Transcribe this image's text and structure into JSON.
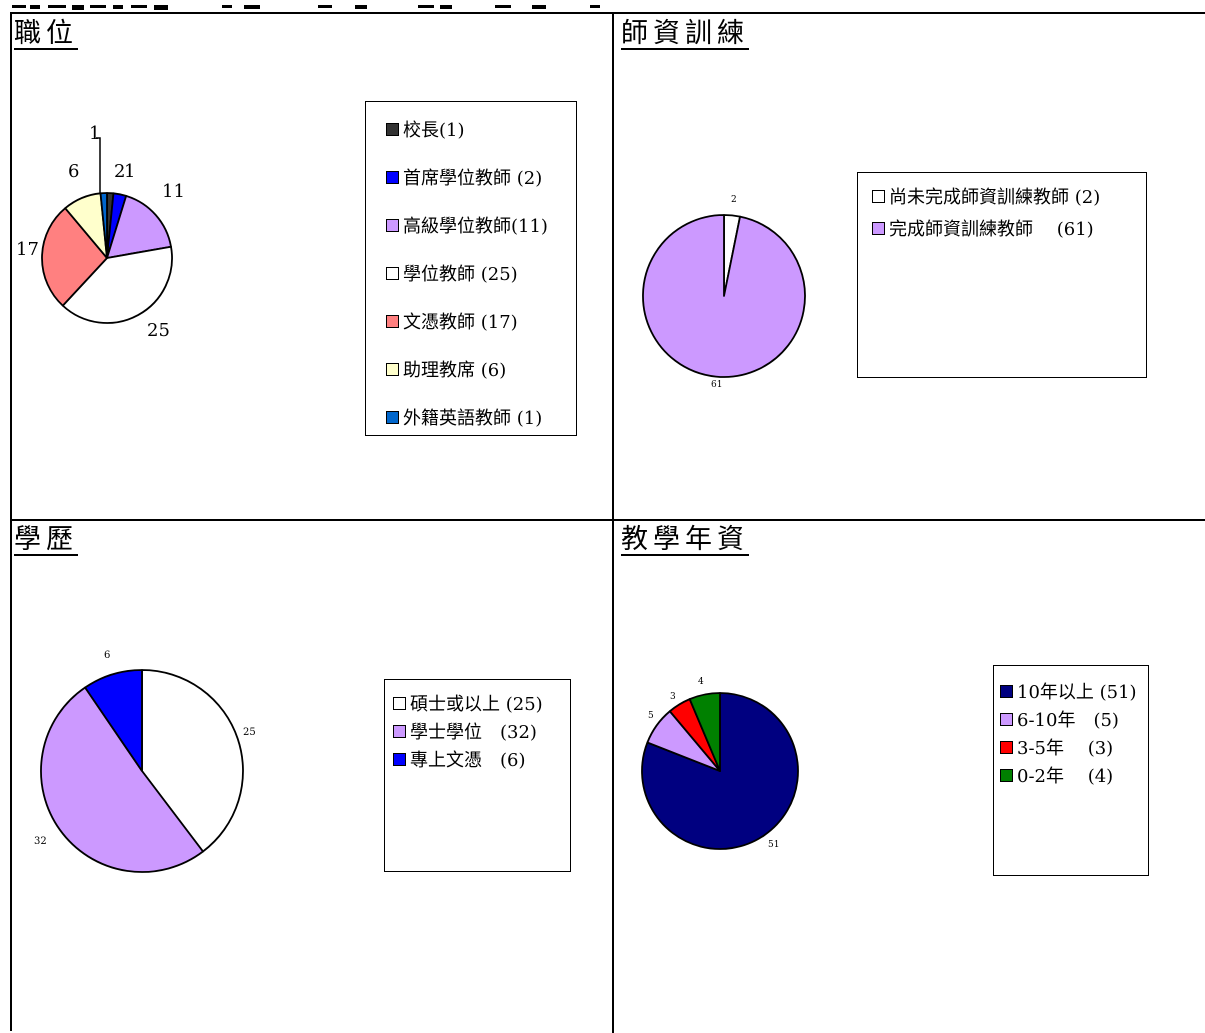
{
  "chart_data": [
    {
      "type": "pie",
      "title": "職位",
      "series": [
        {
          "values": [
            1,
            2,
            11,
            25,
            17,
            6,
            1
          ],
          "data_labels": [
            "1",
            "2",
            "11",
            "25",
            "17",
            "6",
            "1"
          ],
          "colors": [
            "#333333",
            "#0000FF",
            "#CC99FF",
            "#FFFFFF",
            "#FF8080",
            "#FFFFCC",
            "#0066CC"
          ]
        }
      ],
      "legend_entries": [
        "校長(1)",
        "首席學位教師 (2)",
        "高級學位教師(11)",
        "學位教師 (25)",
        "文憑教師 (17)",
        "助理教席 (6)",
        "外籍英語教師 (1)"
      ],
      "legend_position": "right"
    },
    {
      "type": "pie",
      "title": "師資訓練",
      "series": [
        {
          "values": [
            2,
            61
          ],
          "data_labels": [
            "2",
            "61"
          ],
          "colors": [
            "#FFFFFF",
            "#CC99FF"
          ]
        }
      ],
      "legend_entries": [
        "尚未完成師資訓練教師 (2)",
        "完成師資訓練教師　 (61)"
      ],
      "legend_position": "right"
    },
    {
      "type": "pie",
      "title": "學歷",
      "series": [
        {
          "values": [
            25,
            32,
            6
          ],
          "data_labels": [
            "25",
            "32",
            "6"
          ],
          "colors": [
            "#FFFFFF",
            "#CC99FF",
            "#0000FF"
          ]
        }
      ],
      "legend_entries": [
        "碩士或以上 (25)",
        "學士學位　(32)",
        "專上文憑　(6)"
      ],
      "legend_position": "right"
    },
    {
      "type": "pie",
      "title": "教學年資",
      "series": [
        {
          "values": [
            51,
            5,
            3,
            4
          ],
          "data_labels": [
            "51",
            "5",
            "3",
            "4"
          ],
          "colors": [
            "#000080",
            "#CC99FF",
            "#FF0000",
            "#008000"
          ]
        }
      ],
      "legend_entries": [
        "10年以上 (51)",
        "6-10年　(5)",
        "3-5年　 (3)",
        "0-2年　 (4)"
      ],
      "legend_position": "right"
    }
  ]
}
